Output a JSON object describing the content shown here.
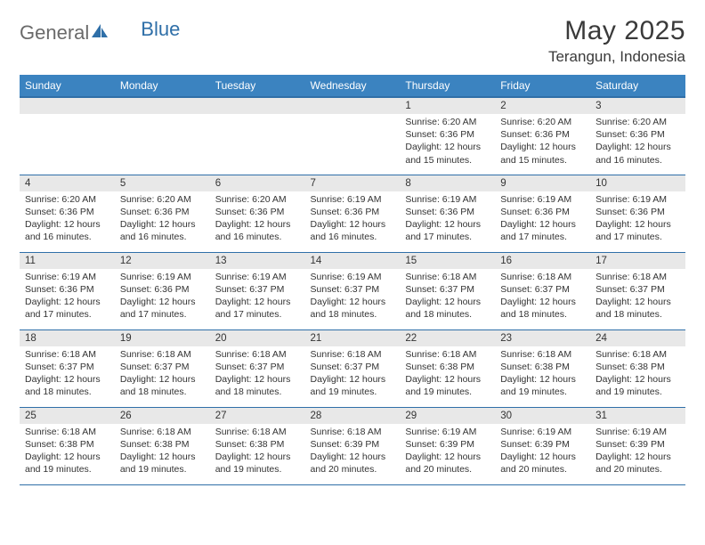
{
  "logo": {
    "text1": "General",
    "text2": "Blue"
  },
  "header": {
    "title": "May 2025",
    "location": "Terangun, Indonesia"
  },
  "calendar": {
    "day_names": [
      "Sunday",
      "Monday",
      "Tuesday",
      "Wednesday",
      "Thursday",
      "Friday",
      "Saturday"
    ],
    "colors": {
      "header_bg": "#3b83c0",
      "header_border": "#2f6fa8",
      "row_border": "#2f6fa8",
      "daynum_bg": "#e8e8e8",
      "text": "#333333"
    },
    "font_sizes": {
      "title": 30,
      "subtitle": 17,
      "dayname": 12,
      "daynum": 11.5,
      "body": 10.5
    },
    "weeks": [
      [
        {
          "n": "",
          "sr": "",
          "ss": "",
          "dl": ""
        },
        {
          "n": "",
          "sr": "",
          "ss": "",
          "dl": ""
        },
        {
          "n": "",
          "sr": "",
          "ss": "",
          "dl": ""
        },
        {
          "n": "",
          "sr": "",
          "ss": "",
          "dl": ""
        },
        {
          "n": "1",
          "sr": "Sunrise: 6:20 AM",
          "ss": "Sunset: 6:36 PM",
          "dl": "Daylight: 12 hours and 15 minutes."
        },
        {
          "n": "2",
          "sr": "Sunrise: 6:20 AM",
          "ss": "Sunset: 6:36 PM",
          "dl": "Daylight: 12 hours and 15 minutes."
        },
        {
          "n": "3",
          "sr": "Sunrise: 6:20 AM",
          "ss": "Sunset: 6:36 PM",
          "dl": "Daylight: 12 hours and 16 minutes."
        }
      ],
      [
        {
          "n": "4",
          "sr": "Sunrise: 6:20 AM",
          "ss": "Sunset: 6:36 PM",
          "dl": "Daylight: 12 hours and 16 minutes."
        },
        {
          "n": "5",
          "sr": "Sunrise: 6:20 AM",
          "ss": "Sunset: 6:36 PM",
          "dl": "Daylight: 12 hours and 16 minutes."
        },
        {
          "n": "6",
          "sr": "Sunrise: 6:20 AM",
          "ss": "Sunset: 6:36 PM",
          "dl": "Daylight: 12 hours and 16 minutes."
        },
        {
          "n": "7",
          "sr": "Sunrise: 6:19 AM",
          "ss": "Sunset: 6:36 PM",
          "dl": "Daylight: 12 hours and 16 minutes."
        },
        {
          "n": "8",
          "sr": "Sunrise: 6:19 AM",
          "ss": "Sunset: 6:36 PM",
          "dl": "Daylight: 12 hours and 17 minutes."
        },
        {
          "n": "9",
          "sr": "Sunrise: 6:19 AM",
          "ss": "Sunset: 6:36 PM",
          "dl": "Daylight: 12 hours and 17 minutes."
        },
        {
          "n": "10",
          "sr": "Sunrise: 6:19 AM",
          "ss": "Sunset: 6:36 PM",
          "dl": "Daylight: 12 hours and 17 minutes."
        }
      ],
      [
        {
          "n": "11",
          "sr": "Sunrise: 6:19 AM",
          "ss": "Sunset: 6:36 PM",
          "dl": "Daylight: 12 hours and 17 minutes."
        },
        {
          "n": "12",
          "sr": "Sunrise: 6:19 AM",
          "ss": "Sunset: 6:36 PM",
          "dl": "Daylight: 12 hours and 17 minutes."
        },
        {
          "n": "13",
          "sr": "Sunrise: 6:19 AM",
          "ss": "Sunset: 6:37 PM",
          "dl": "Daylight: 12 hours and 17 minutes."
        },
        {
          "n": "14",
          "sr": "Sunrise: 6:19 AM",
          "ss": "Sunset: 6:37 PM",
          "dl": "Daylight: 12 hours and 18 minutes."
        },
        {
          "n": "15",
          "sr": "Sunrise: 6:18 AM",
          "ss": "Sunset: 6:37 PM",
          "dl": "Daylight: 12 hours and 18 minutes."
        },
        {
          "n": "16",
          "sr": "Sunrise: 6:18 AM",
          "ss": "Sunset: 6:37 PM",
          "dl": "Daylight: 12 hours and 18 minutes."
        },
        {
          "n": "17",
          "sr": "Sunrise: 6:18 AM",
          "ss": "Sunset: 6:37 PM",
          "dl": "Daylight: 12 hours and 18 minutes."
        }
      ],
      [
        {
          "n": "18",
          "sr": "Sunrise: 6:18 AM",
          "ss": "Sunset: 6:37 PM",
          "dl": "Daylight: 12 hours and 18 minutes."
        },
        {
          "n": "19",
          "sr": "Sunrise: 6:18 AM",
          "ss": "Sunset: 6:37 PM",
          "dl": "Daylight: 12 hours and 18 minutes."
        },
        {
          "n": "20",
          "sr": "Sunrise: 6:18 AM",
          "ss": "Sunset: 6:37 PM",
          "dl": "Daylight: 12 hours and 18 minutes."
        },
        {
          "n": "21",
          "sr": "Sunrise: 6:18 AM",
          "ss": "Sunset: 6:37 PM",
          "dl": "Daylight: 12 hours and 19 minutes."
        },
        {
          "n": "22",
          "sr": "Sunrise: 6:18 AM",
          "ss": "Sunset: 6:38 PM",
          "dl": "Daylight: 12 hours and 19 minutes."
        },
        {
          "n": "23",
          "sr": "Sunrise: 6:18 AM",
          "ss": "Sunset: 6:38 PM",
          "dl": "Daylight: 12 hours and 19 minutes."
        },
        {
          "n": "24",
          "sr": "Sunrise: 6:18 AM",
          "ss": "Sunset: 6:38 PM",
          "dl": "Daylight: 12 hours and 19 minutes."
        }
      ],
      [
        {
          "n": "25",
          "sr": "Sunrise: 6:18 AM",
          "ss": "Sunset: 6:38 PM",
          "dl": "Daylight: 12 hours and 19 minutes."
        },
        {
          "n": "26",
          "sr": "Sunrise: 6:18 AM",
          "ss": "Sunset: 6:38 PM",
          "dl": "Daylight: 12 hours and 19 minutes."
        },
        {
          "n": "27",
          "sr": "Sunrise: 6:18 AM",
          "ss": "Sunset: 6:38 PM",
          "dl": "Daylight: 12 hours and 19 minutes."
        },
        {
          "n": "28",
          "sr": "Sunrise: 6:18 AM",
          "ss": "Sunset: 6:39 PM",
          "dl": "Daylight: 12 hours and 20 minutes."
        },
        {
          "n": "29",
          "sr": "Sunrise: 6:19 AM",
          "ss": "Sunset: 6:39 PM",
          "dl": "Daylight: 12 hours and 20 minutes."
        },
        {
          "n": "30",
          "sr": "Sunrise: 6:19 AM",
          "ss": "Sunset: 6:39 PM",
          "dl": "Daylight: 12 hours and 20 minutes."
        },
        {
          "n": "31",
          "sr": "Sunrise: 6:19 AM",
          "ss": "Sunset: 6:39 PM",
          "dl": "Daylight: 12 hours and 20 minutes."
        }
      ]
    ]
  }
}
